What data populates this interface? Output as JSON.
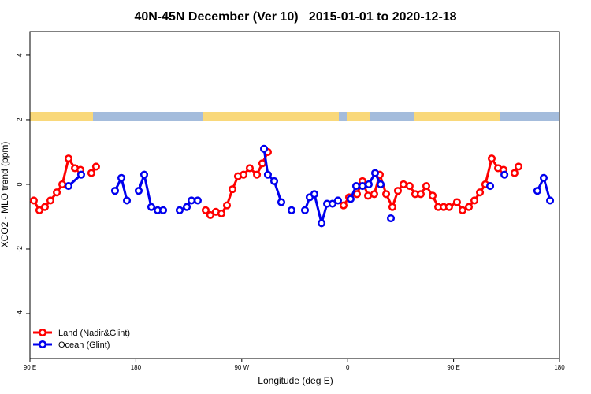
{
  "chart_data": {
    "type": "line",
    "title": "40N-45N December (Ver 10)   2015-01-01 to 2020-12-18",
    "xlabel": "Longitude (deg E)",
    "ylabel": "XCO2 - MLO trend (ppm)",
    "xlim": [
      90,
      540
    ],
    "xticks": [
      {
        "value": 90,
        "label": "90 E"
      },
      {
        "value": 180,
        "label": "180"
      },
      {
        "value": 270,
        "label": "90 W"
      },
      {
        "value": 360,
        "label": "0"
      },
      {
        "value": 450,
        "label": "90 E"
      },
      {
        "value": 540,
        "label": "180"
      }
    ],
    "ylim": [
      -5.39,
      4.73
    ],
    "yticks": [
      -4,
      -2,
      0,
      2,
      4
    ],
    "legend": "bottom-left",
    "series": [
      {
        "name": "Land (Nadir&Glint)",
        "color": "#ff0000",
        "x": [
          93.3,
          98.0,
          102.7,
          107.4,
          112.8,
          117.5,
          122.8,
          128.2,
          132.9,
          null,
          142.2,
          146.2,
          null,
          239.3,
          243.3,
          248.0,
          252.7,
          257.4,
          262.1,
          266.8,
          271.5,
          276.8,
          282.9,
          287.5,
          292.2,
          null,
          356.5,
          361.2,
          367.9,
          372.6,
          377.3,
          382.6,
          387.3,
          392.7,
          398.0,
          402.7,
          407.4,
          412.7,
          417.4,
          422.1,
          426.8,
          432.2,
          436.9,
          441.6,
          446.2,
          452.9,
          457.6,
          463.0,
          467.7,
          472.4,
          477.0,
          482.4,
          487.8,
          492.5,
          null,
          501.8,
          505.2
        ],
        "values": [
          -0.5,
          -0.8,
          -0.7,
          -0.5,
          -0.25,
          0,
          0.8,
          0.5,
          0.45,
          null,
          0.35,
          0.55,
          null,
          -0.8,
          -0.95,
          -0.85,
          -0.9,
          -0.65,
          -0.15,
          0.25,
          0.3,
          0.5,
          0.3,
          0.65,
          1.0,
          null,
          -0.65,
          -0.4,
          -0.3,
          0.1,
          -0.35,
          -0.3,
          0.3,
          -0.3,
          -0.7,
          -0.2,
          0,
          -0.05,
          -0.3,
          -0.3,
          -0.05,
          -0.35,
          -0.7,
          -0.7,
          -0.7,
          -0.55,
          -0.8,
          -0.7,
          -0.5,
          -0.25,
          0,
          0.8,
          0.5,
          0.45,
          null,
          0.35,
          0.55
        ]
      },
      {
        "name": "Ocean (Glint)",
        "color": "#0000ee",
        "x": [
          122.8,
          133.5,
          null,
          162.3,
          167.7,
          172.4,
          null,
          182.4,
          187.1,
          193.1,
          198.5,
          203.2,
          null,
          217.2,
          223.3,
          227.3,
          232.6,
          null,
          288.9,
          292.2,
          297.6,
          303.6,
          null,
          312.3,
          null,
          323.7,
          327.7,
          331.7,
          337.8,
          342.5,
          347.1,
          351.8,
          null,
          362.5,
          367.2,
          372.6,
          377.9,
          383.3,
          388.0,
          null,
          396.7,
          null,
          481.1,
          null,
          493.2,
          null,
          521.2,
          526.6,
          532.0
        ],
        "values": [
          -0.05,
          0.3,
          null,
          -0.2,
          0.2,
          -0.5,
          null,
          -0.2,
          0.3,
          -0.7,
          -0.8,
          -0.8,
          null,
          -0.8,
          -0.7,
          -0.5,
          -0.5,
          null,
          1.1,
          0.3,
          0.1,
          -0.55,
          null,
          -0.8,
          null,
          -0.8,
          -0.4,
          -0.3,
          -1.2,
          -0.6,
          -0.6,
          -0.5,
          null,
          -0.45,
          -0.05,
          -0.05,
          0,
          0.35,
          0,
          null,
          -1.05,
          null,
          -0.05,
          null,
          0.3,
          null,
          -0.2,
          0.2,
          -0.5
        ]
      }
    ]
  }
}
